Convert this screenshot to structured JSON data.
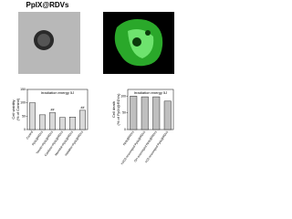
{
  "figure_title": "PpIX@RDVs",
  "chart_data": [
    {
      "type": "bar",
      "title": "Irradiation energy 5J",
      "ylabel": [
        "Cell viability",
        "(% of Control)"
      ],
      "categories": [
        "Control",
        "PpIX@RDVs",
        "Tannin+PpIX@RDVs",
        "Catalase+PpIX@RDVs",
        "Mannitol+PpIX@RDVs",
        "Histidine+PpIX@RDVs"
      ],
      "values": [
        100,
        55,
        63,
        45,
        47,
        72
      ],
      "color": "#d9d9d9",
      "annotations": [
        {
          "text": "##",
          "category": "Tannin+PpIX@RDVs"
        },
        {
          "text": "##",
          "category": "Histidine+PpIX@RDVs"
        }
      ],
      "ylim": [
        0,
        150
      ],
      "yticks": [
        0,
        50,
        100,
        150
      ]
    },
    {
      "type": "bar",
      "title": "Irradiation energy 5J",
      "ylabel": [
        "Cell death",
        "(% of PpIX@RDVs)"
      ],
      "categories": [
        "PpIX@RDVs",
        "H2O2-scavenged PpIX@RDVs",
        "·OH-scavenged PpIX@RDVs",
        "1O2-scavenged PpIX@RDVs"
      ],
      "values": [
        100,
        98,
        98,
        85
      ],
      "color": "#bfbfbf",
      "ylim": [
        0,
        120
      ],
      "yticks": [
        0,
        50,
        100
      ]
    }
  ]
}
